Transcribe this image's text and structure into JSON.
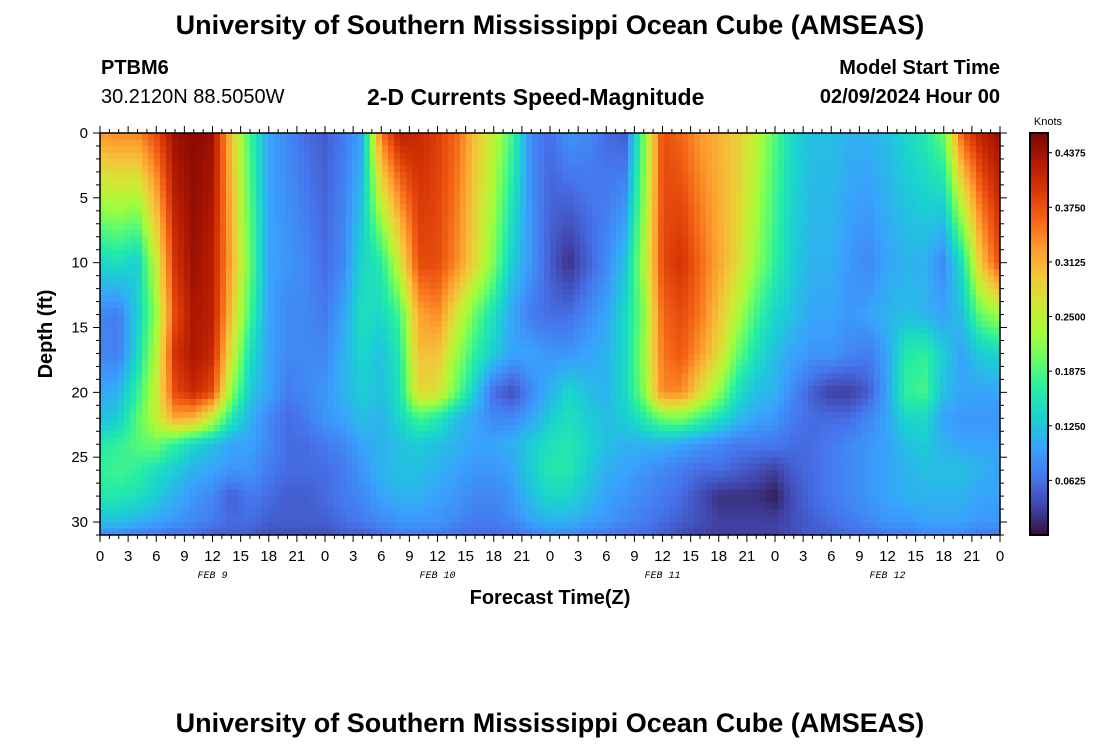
{
  "header": {
    "title": "University of Southern Mississippi Ocean Cube (AMSEAS)",
    "station_id": "PTBM6",
    "station_coords": "30.2120N  88.5050W",
    "subtitle": "2-D Currents Speed-Magnitude",
    "model_start_label": "Model Start Time",
    "model_start_value": "02/09/2024 Hour 00"
  },
  "footer": {
    "title": "University of Southern Mississippi Ocean Cube (AMSEAS)"
  },
  "colors": {
    "palette": [
      "#30123b",
      "#4145ab",
      "#4675ed",
      "#39a2fc",
      "#1bcfd4",
      "#24eca6",
      "#61fc6c",
      "#a4fc3b",
      "#d1e834",
      "#f3c63a",
      "#fe9b2d",
      "#f36315",
      "#d93806",
      "#b11901",
      "#7a0403"
    ]
  },
  "chart_data": {
    "type": "heatmap",
    "title": "2-D Currents Speed-Magnitude",
    "xlabel": "Forecast Time(Z)",
    "ylabel": "Depth (ft)",
    "xlim": [
      0,
      96
    ],
    "ylim": [
      31,
      0
    ],
    "x_tick_values": [
      0,
      3,
      6,
      9,
      12,
      15,
      18,
      21,
      24,
      27,
      30,
      33,
      36,
      39,
      42,
      45,
      48,
      51,
      54,
      57,
      60,
      63,
      66,
      69,
      72,
      75,
      78,
      81,
      84,
      87,
      90,
      93,
      96
    ],
    "x_tick_labels": [
      "0",
      "3",
      "6",
      "9",
      "12",
      "15",
      "18",
      "21",
      "0",
      "3",
      "6",
      "9",
      "12",
      "15",
      "18",
      "21",
      "0",
      "3",
      "6",
      "9",
      "12",
      "15",
      "18",
      "21",
      "0",
      "3",
      "6",
      "9",
      "12",
      "15",
      "18",
      "21",
      "0"
    ],
    "date_labels": [
      {
        "label": "FEB 9",
        "x": 12
      },
      {
        "label": "FEB 10",
        "x": 36
      },
      {
        "label": "FEB 11",
        "x": 60
      },
      {
        "label": "FEB 12",
        "x": 84
      }
    ],
    "y_tick_values": [
      0,
      5,
      10,
      15,
      20,
      25,
      30
    ],
    "y_tick_labels": [
      "0",
      "5",
      "10",
      "15",
      "20",
      "25",
      "30"
    ],
    "colorbar": {
      "title": "Knots",
      "min": 0,
      "max": 0.46,
      "tick_values": [
        0.0625,
        0.125,
        0.1875,
        0.25,
        0.3125,
        0.375,
        0.4375
      ],
      "tick_labels": [
        "0.0625",
        "0.1250",
        "0.1875",
        "0.2500",
        "0.3125",
        "0.3750",
        "0.4375"
      ]
    },
    "depths": [
      0,
      10,
      14,
      17,
      20,
      22,
      24,
      26,
      28,
      30,
      31
    ],
    "times": [
      0,
      2,
      4,
      6,
      8,
      10,
      12,
      14,
      16,
      18,
      20,
      22,
      24,
      26,
      28,
      30,
      32,
      34,
      36,
      38,
      40,
      42,
      44,
      46,
      48,
      50,
      52,
      54,
      56,
      58,
      60,
      62,
      64,
      66,
      68,
      70,
      72,
      74,
      76,
      78,
      80,
      82,
      84,
      86,
      88,
      90,
      92,
      94,
      96
    ],
    "speed_knots": [
      [
        0.33,
        0.34,
        0.34,
        0.38,
        0.44,
        0.45,
        0.44,
        0.3,
        0.18,
        0.1,
        0.08,
        0.06,
        0.05,
        0.07,
        0.1,
        0.35,
        0.42,
        0.41,
        0.39,
        0.36,
        0.3,
        0.25,
        0.18,
        0.08,
        0.06,
        0.09,
        0.08,
        0.06,
        0.05,
        0.2,
        0.38,
        0.36,
        0.33,
        0.31,
        0.29,
        0.25,
        0.19,
        0.14,
        0.12,
        0.12,
        0.11,
        0.11,
        0.12,
        0.14,
        0.16,
        0.2,
        0.37,
        0.42,
        0.44
      ],
      [
        0.14,
        0.15,
        0.13,
        0.25,
        0.4,
        0.44,
        0.42,
        0.32,
        0.2,
        0.1,
        0.09,
        0.08,
        0.06,
        0.08,
        0.14,
        0.16,
        0.26,
        0.38,
        0.38,
        0.34,
        0.28,
        0.21,
        0.13,
        0.09,
        0.05,
        0.02,
        0.05,
        0.08,
        0.12,
        0.23,
        0.38,
        0.4,
        0.36,
        0.32,
        0.28,
        0.22,
        0.17,
        0.13,
        0.11,
        0.11,
        0.09,
        0.08,
        0.1,
        0.11,
        0.11,
        0.08,
        0.15,
        0.3,
        0.38
      ],
      [
        0.08,
        0.07,
        0.13,
        0.22,
        0.38,
        0.43,
        0.42,
        0.3,
        0.18,
        0.1,
        0.08,
        0.08,
        0.07,
        0.1,
        0.15,
        0.14,
        0.18,
        0.32,
        0.34,
        0.27,
        0.2,
        0.15,
        0.1,
        0.07,
        0.06,
        0.06,
        0.08,
        0.1,
        0.14,
        0.21,
        0.36,
        0.38,
        0.35,
        0.3,
        0.24,
        0.18,
        0.14,
        0.12,
        0.1,
        0.1,
        0.09,
        0.1,
        0.11,
        0.12,
        0.11,
        0.1,
        0.12,
        0.2,
        0.23
      ],
      [
        0.08,
        0.07,
        0.14,
        0.24,
        0.4,
        0.43,
        0.41,
        0.27,
        0.15,
        0.1,
        0.08,
        0.08,
        0.08,
        0.11,
        0.14,
        0.12,
        0.16,
        0.3,
        0.3,
        0.23,
        0.17,
        0.13,
        0.1,
        0.1,
        0.09,
        0.09,
        0.1,
        0.11,
        0.14,
        0.22,
        0.35,
        0.37,
        0.33,
        0.28,
        0.2,
        0.15,
        0.12,
        0.1,
        0.09,
        0.09,
        0.08,
        0.07,
        0.1,
        0.16,
        0.17,
        0.13,
        0.1,
        0.13,
        0.14
      ],
      [
        0.1,
        0.11,
        0.17,
        0.25,
        0.38,
        0.41,
        0.38,
        0.22,
        0.13,
        0.1,
        0.07,
        0.08,
        0.09,
        0.11,
        0.13,
        0.12,
        0.15,
        0.28,
        0.27,
        0.2,
        0.13,
        0.06,
        0.04,
        0.08,
        0.11,
        0.14,
        0.12,
        0.11,
        0.14,
        0.21,
        0.34,
        0.34,
        0.28,
        0.22,
        0.15,
        0.12,
        0.11,
        0.08,
        0.05,
        0.03,
        0.03,
        0.05,
        0.1,
        0.17,
        0.18,
        0.12,
        0.1,
        0.1,
        0.1
      ],
      [
        0.12,
        0.13,
        0.19,
        0.25,
        0.32,
        0.31,
        0.25,
        0.16,
        0.11,
        0.08,
        0.06,
        0.07,
        0.09,
        0.1,
        0.12,
        0.11,
        0.14,
        0.18,
        0.16,
        0.12,
        0.1,
        0.08,
        0.08,
        0.1,
        0.13,
        0.15,
        0.13,
        0.12,
        0.13,
        0.16,
        0.2,
        0.21,
        0.18,
        0.15,
        0.12,
        0.1,
        0.09,
        0.07,
        0.06,
        0.06,
        0.06,
        0.08,
        0.1,
        0.14,
        0.14,
        0.1,
        0.09,
        0.09,
        0.09
      ],
      [
        0.16,
        0.17,
        0.19,
        0.2,
        0.17,
        0.14,
        0.12,
        0.1,
        0.1,
        0.08,
        0.06,
        0.06,
        0.07,
        0.08,
        0.1,
        0.11,
        0.12,
        0.13,
        0.12,
        0.11,
        0.1,
        0.1,
        0.11,
        0.13,
        0.15,
        0.16,
        0.14,
        0.12,
        0.11,
        0.11,
        0.11,
        0.1,
        0.09,
        0.08,
        0.07,
        0.07,
        0.07,
        0.06,
        0.06,
        0.07,
        0.08,
        0.09,
        0.1,
        0.12,
        0.13,
        0.11,
        0.1,
        0.1,
        0.1
      ],
      [
        0.17,
        0.18,
        0.17,
        0.15,
        0.13,
        0.11,
        0.1,
        0.09,
        0.09,
        0.07,
        0.06,
        0.06,
        0.06,
        0.07,
        0.09,
        0.11,
        0.12,
        0.12,
        0.11,
        0.1,
        0.09,
        0.09,
        0.1,
        0.13,
        0.16,
        0.16,
        0.13,
        0.11,
        0.1,
        0.09,
        0.08,
        0.07,
        0.06,
        0.06,
        0.05,
        0.04,
        0.03,
        0.05,
        0.06,
        0.07,
        0.08,
        0.09,
        0.1,
        0.11,
        0.12,
        0.12,
        0.12,
        0.11,
        0.1
      ],
      [
        0.16,
        0.16,
        0.15,
        0.13,
        0.11,
        0.09,
        0.08,
        0.05,
        0.07,
        0.06,
        0.05,
        0.05,
        0.06,
        0.07,
        0.08,
        0.1,
        0.11,
        0.11,
        0.1,
        0.09,
        0.08,
        0.08,
        0.09,
        0.12,
        0.14,
        0.14,
        0.12,
        0.1,
        0.09,
        0.08,
        0.07,
        0.06,
        0.04,
        0.02,
        0.02,
        0.02,
        0.01,
        0.04,
        0.06,
        0.07,
        0.08,
        0.09,
        0.1,
        0.11,
        0.11,
        0.11,
        0.11,
        0.1,
        0.1
      ],
      [
        0.12,
        0.12,
        0.11,
        0.1,
        0.09,
        0.08,
        0.07,
        0.06,
        0.06,
        0.05,
        0.05,
        0.05,
        0.05,
        0.06,
        0.07,
        0.08,
        0.09,
        0.09,
        0.09,
        0.08,
        0.07,
        0.07,
        0.08,
        0.1,
        0.11,
        0.11,
        0.1,
        0.09,
        0.08,
        0.07,
        0.06,
        0.05,
        0.04,
        0.03,
        0.03,
        0.03,
        0.03,
        0.04,
        0.05,
        0.06,
        0.07,
        0.08,
        0.09,
        0.09,
        0.1,
        0.1,
        0.1,
        0.09,
        0.09
      ],
      [
        0.08,
        0.08,
        0.07,
        0.07,
        0.06,
        0.06,
        0.05,
        0.05,
        0.05,
        0.04,
        0.04,
        0.04,
        0.04,
        0.05,
        0.05,
        0.06,
        0.07,
        0.07,
        0.07,
        0.06,
        0.06,
        0.06,
        0.06,
        0.07,
        0.08,
        0.08,
        0.07,
        0.07,
        0.06,
        0.06,
        0.05,
        0.04,
        0.03,
        0.03,
        0.03,
        0.03,
        0.03,
        0.04,
        0.05,
        0.05,
        0.06,
        0.06,
        0.07,
        0.07,
        0.08,
        0.08,
        0.08,
        0.07,
        0.07
      ]
    ]
  }
}
